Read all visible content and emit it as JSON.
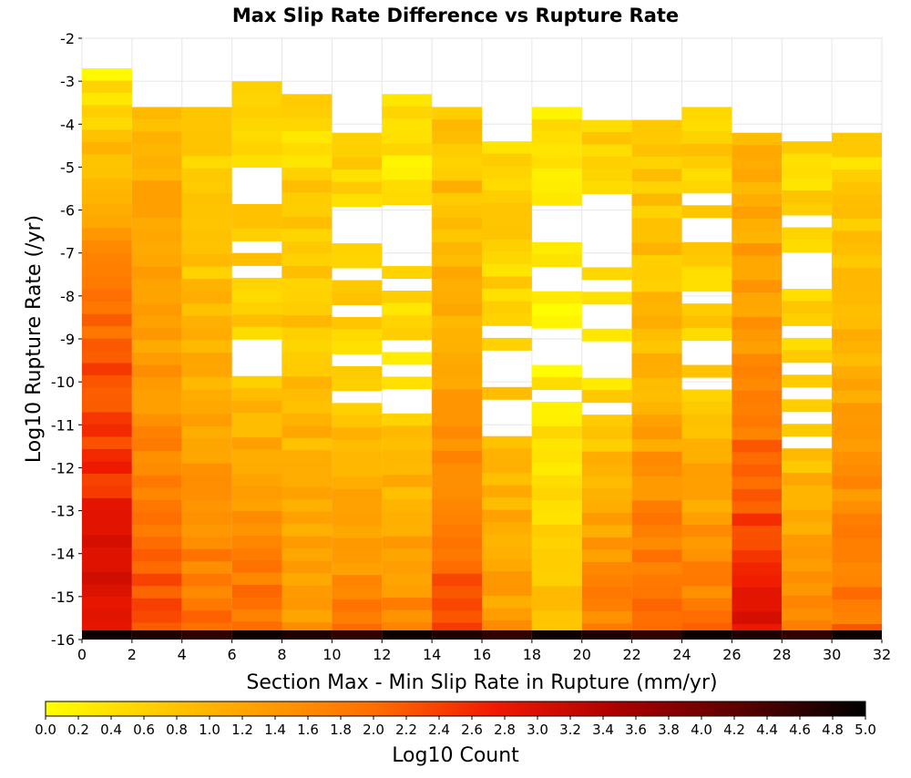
{
  "chart_data": {
    "type": "heatmap",
    "title": "Max Slip Rate Difference vs Rupture Rate",
    "xlabel": "Section Max - Min Slip Rate in Rupture (mm/yr)",
    "ylabel": "Log10 Rupture Rate (/yr)",
    "xlim": [
      0,
      32
    ],
    "ylim": [
      -16,
      -2
    ],
    "x_ticks": [
      "0",
      "2",
      "4",
      "6",
      "8",
      "10",
      "12",
      "14",
      "16",
      "18",
      "20",
      "22",
      "24",
      "26",
      "28",
      "30",
      "32"
    ],
    "y_ticks": [
      "-2",
      "-3",
      "-4",
      "-5",
      "-6",
      "-7",
      "-8",
      "-9",
      "-10",
      "-11",
      "-12",
      "-13",
      "-14",
      "-15",
      "-16"
    ],
    "x_bin_width": 2,
    "y_bin_height": 0.286,
    "colorbar": {
      "label": "Log10 Count",
      "min": 0.0,
      "max": 5.0,
      "ticks": [
        "0.0",
        "0.2",
        "0.4",
        "0.6",
        "0.8",
        "1.0",
        "1.2",
        "1.4",
        "1.6",
        "1.8",
        "2.0",
        "2.2",
        "2.4",
        "2.6",
        "2.8",
        "3.0",
        "3.2",
        "3.4",
        "3.6",
        "3.8",
        "4.0",
        "4.2",
        "4.4",
        "4.6",
        "4.8",
        "5.0"
      ]
    },
    "columns": [
      {
        "x": 1,
        "y_top": -2.7,
        "top_value": 0.3,
        "mid_value": 2.2,
        "bottom_value": 3.1
      },
      {
        "x": 3,
        "y_top": -3.6,
        "top_value": 1.0,
        "mid_value": 1.4,
        "bottom_value": 2.4
      },
      {
        "x": 5,
        "y_top": -3.6,
        "top_value": 0.6,
        "mid_value": 1.0,
        "bottom_value": 2.0
      },
      {
        "x": 7,
        "y_top": -3.0,
        "top_value": 0.5,
        "mid_value": 0.7,
        "bottom_value": 2.0
      },
      {
        "x": 9,
        "y_top": -3.3,
        "top_value": 0.5,
        "mid_value": 0.8,
        "bottom_value": 1.5
      },
      {
        "x": 11,
        "y_top": -4.2,
        "top_value": 0.6,
        "mid_value": 0.6,
        "bottom_value": 1.8
      },
      {
        "x": 13,
        "y_top": -3.3,
        "top_value": 0.3,
        "mid_value": 0.5,
        "bottom_value": 1.7
      },
      {
        "x": 15,
        "y_top": -3.6,
        "top_value": 0.7,
        "mid_value": 1.2,
        "bottom_value": 2.4
      },
      {
        "x": 17,
        "y_top": -4.4,
        "top_value": 0.5,
        "mid_value": 0.7,
        "bottom_value": 1.4
      },
      {
        "x": 19,
        "y_top": -3.6,
        "top_value": 0.3,
        "mid_value": 0.2,
        "bottom_value": 0.9
      },
      {
        "x": 21,
        "y_top": -3.9,
        "top_value": 0.7,
        "mid_value": 0.4,
        "bottom_value": 1.8
      },
      {
        "x": 23,
        "y_top": -3.9,
        "top_value": 0.6,
        "mid_value": 1.0,
        "bottom_value": 2.2
      },
      {
        "x": 25,
        "y_top": -3.6,
        "top_value": 0.6,
        "mid_value": 0.6,
        "bottom_value": 1.9
      },
      {
        "x": 27,
        "y_top": -4.2,
        "top_value": 0.9,
        "mid_value": 1.6,
        "bottom_value": 3.0
      },
      {
        "x": 29,
        "y_top": -4.4,
        "top_value": 0.6,
        "mid_value": 0.6,
        "bottom_value": 1.6
      },
      {
        "x": 31,
        "y_top": -4.2,
        "top_value": 0.5,
        "mid_value": 1.2,
        "bottom_value": 2.0
      }
    ],
    "bottom_row": {
      "y": -15.93,
      "value": 4.9
    },
    "grid": true,
    "legend_position": "bottom"
  }
}
